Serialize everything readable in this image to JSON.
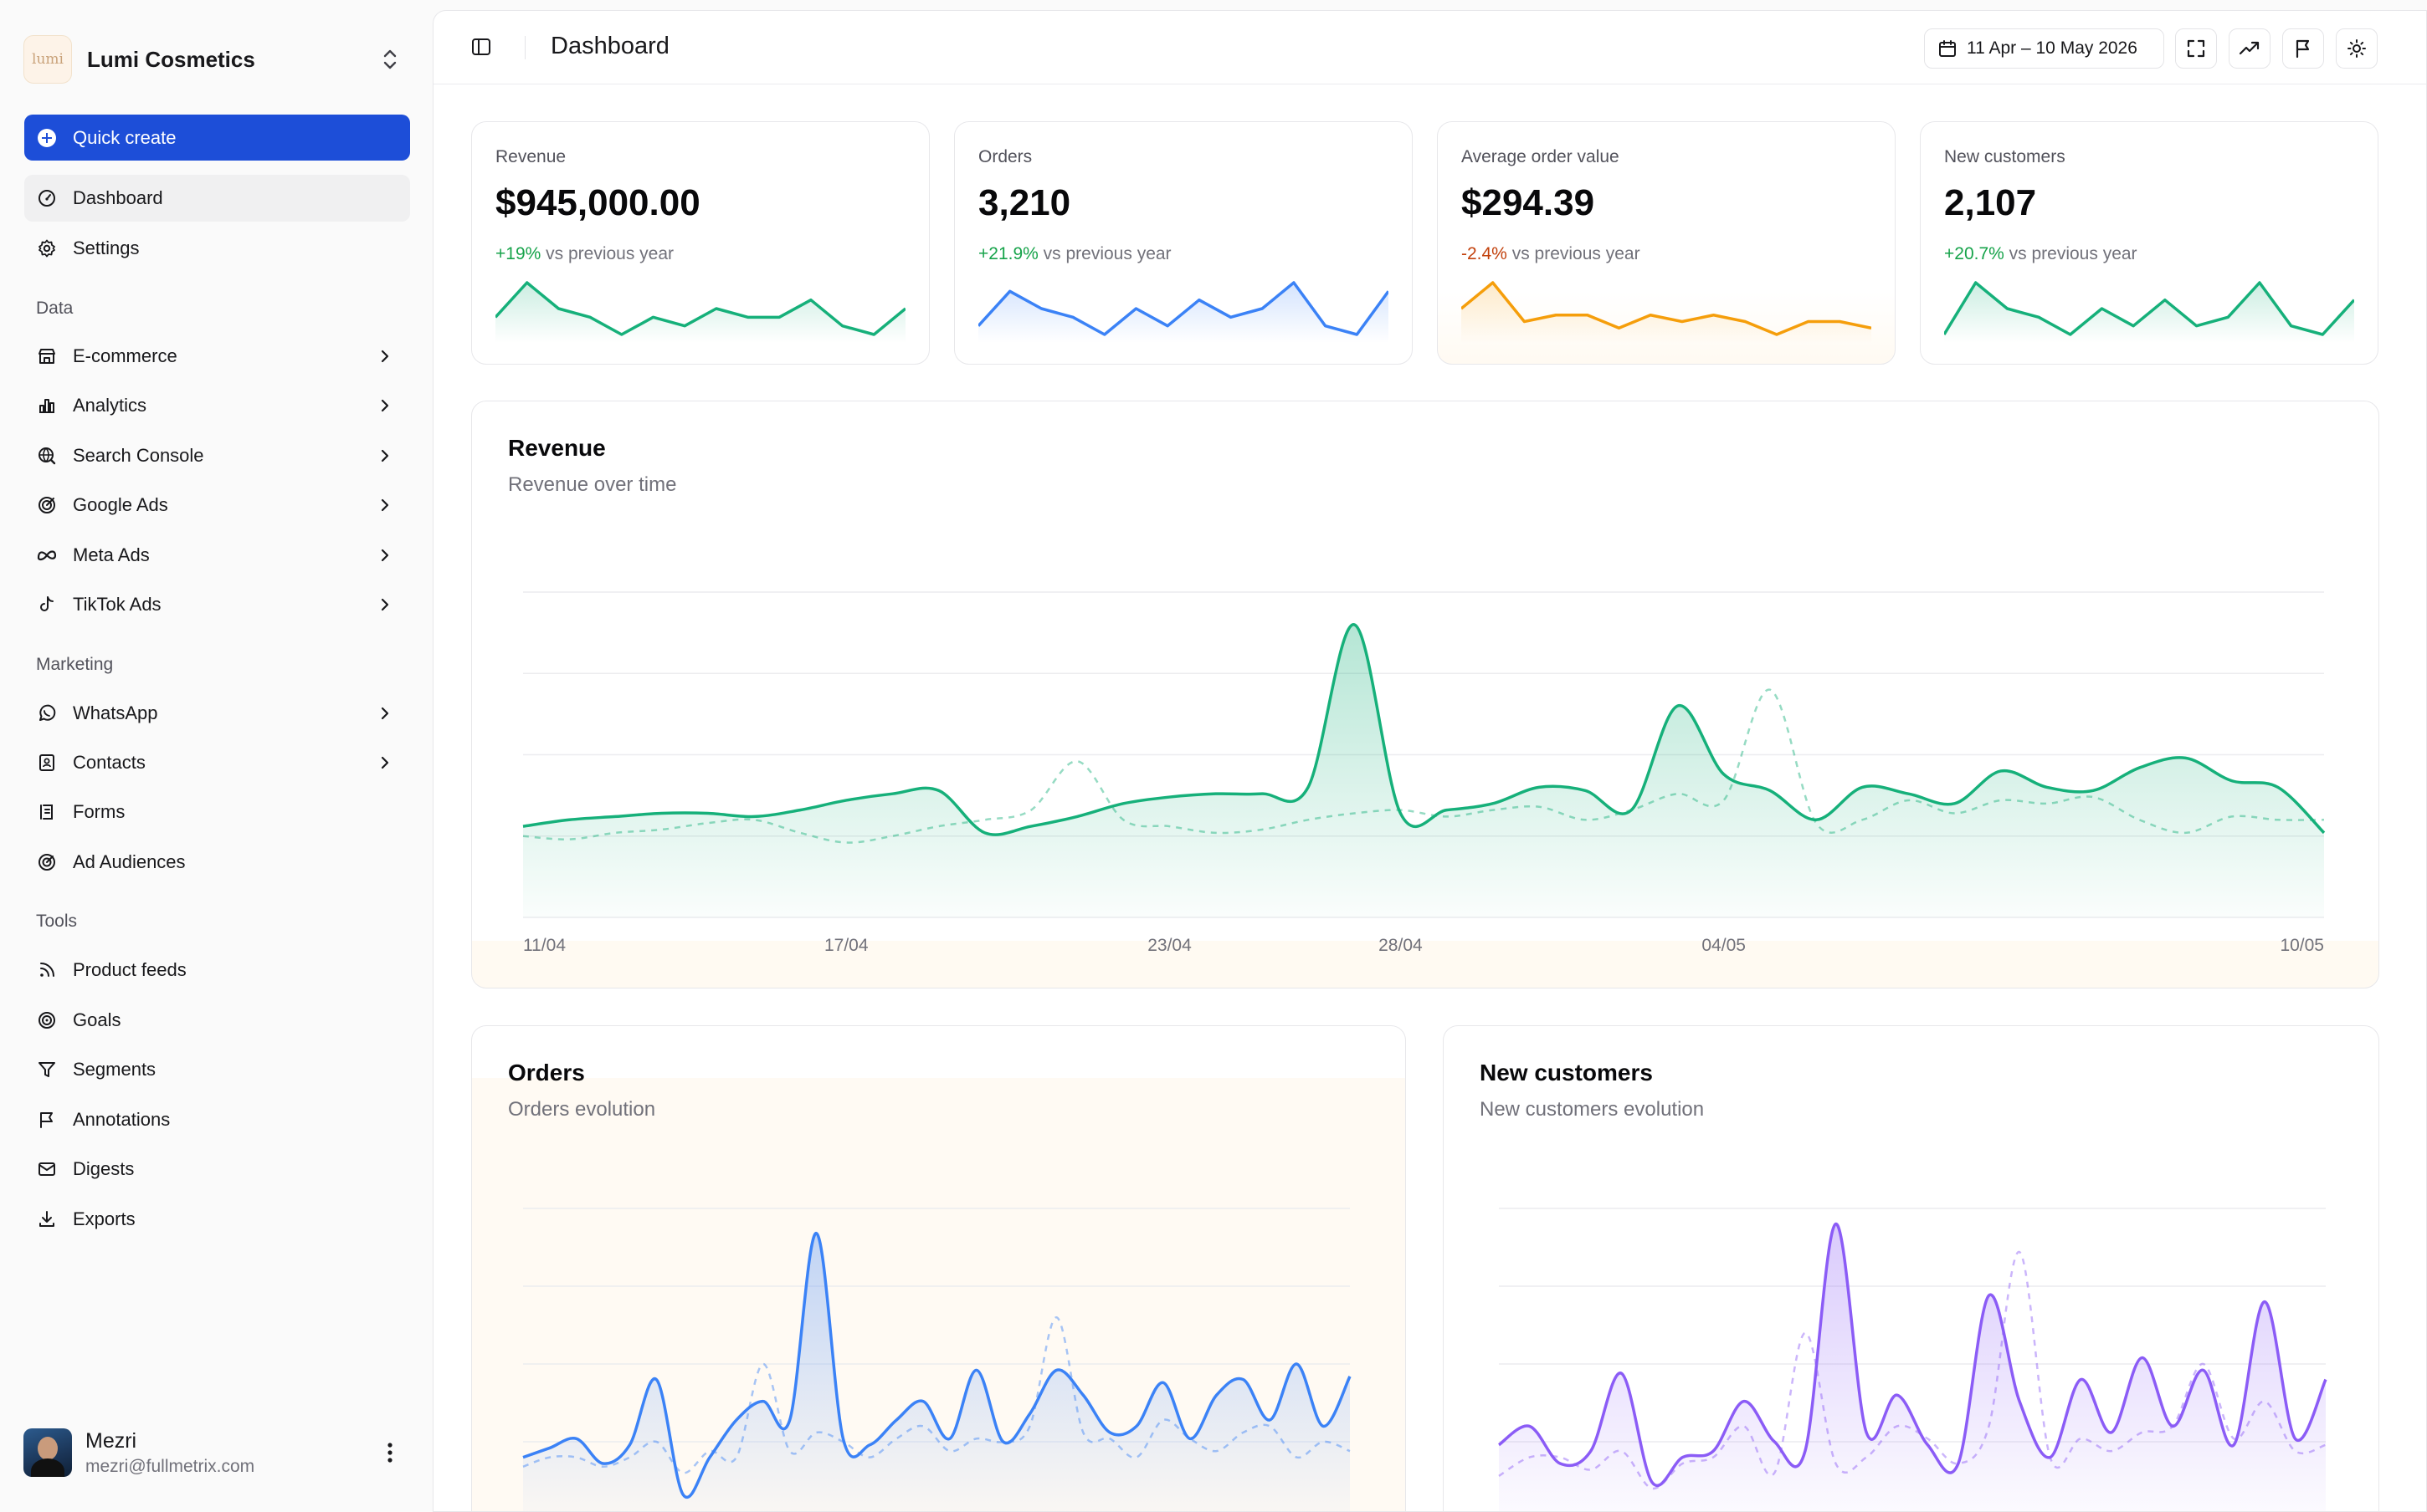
{
  "brand": {
    "name": "Lumi Cosmetics",
    "logo_text": "lumi"
  },
  "quick_create": "Quick create",
  "nav_top": [
    {
      "label": "Dashboard",
      "icon": "dashboard-icon",
      "active": true
    },
    {
      "label": "Settings",
      "icon": "gear-icon"
    }
  ],
  "sections": {
    "data": "Data",
    "marketing": "Marketing",
    "tools": "Tools"
  },
  "nav_data": [
    {
      "label": "E-commerce",
      "icon": "store-icon"
    },
    {
      "label": "Analytics",
      "icon": "bar-chart-icon"
    },
    {
      "label": "Search Console",
      "icon": "globe-search-icon"
    },
    {
      "label": "Google Ads",
      "icon": "target-icon"
    },
    {
      "label": "Meta Ads",
      "icon": "meta-icon"
    },
    {
      "label": "TikTok Ads",
      "icon": "tiktok-icon"
    }
  ],
  "nav_marketing": [
    {
      "label": "WhatsApp",
      "icon": "whatsapp-icon"
    },
    {
      "label": "Contacts",
      "icon": "contacts-icon"
    },
    {
      "label": "Forms",
      "icon": "form-icon"
    },
    {
      "label": "Ad Audiences",
      "icon": "audience-target-icon"
    }
  ],
  "nav_tools": [
    {
      "label": "Product feeds",
      "icon": "rss-icon"
    },
    {
      "label": "Goals",
      "icon": "goal-icon"
    },
    {
      "label": "Segments",
      "icon": "filter-icon"
    },
    {
      "label": "Annotations",
      "icon": "flag-icon"
    },
    {
      "label": "Digests",
      "icon": "mail-icon"
    },
    {
      "label": "Exports",
      "icon": "download-icon"
    }
  ],
  "user": {
    "name": "Mezri",
    "email": "mezri@fullmetrix.com"
  },
  "header": {
    "title": "Dashboard",
    "date_range": "11 Apr – 10 May 2026"
  },
  "kpis": [
    {
      "label": "Revenue",
      "value": "$945,000.00",
      "delta": "+19%",
      "delta_suffix": "vs previous year",
      "color": "#16b07a",
      "trend": [
        5,
        9,
        6,
        5,
        3,
        5,
        4,
        6,
        5,
        5,
        7,
        4,
        3,
        6
      ]
    },
    {
      "label": "Orders",
      "value": "3,210",
      "delta": "+21.9%",
      "delta_suffix": "vs previous year",
      "color": "#3b82f6",
      "trend": [
        4,
        8,
        6,
        5,
        3,
        6,
        4,
        7,
        5,
        6,
        9,
        4,
        3,
        8
      ]
    },
    {
      "label": "Average order value",
      "value": "$294.39",
      "delta": "-2.4%",
      "delta_suffix": "vs previous year",
      "color": "#f59e0b",
      "trend": [
        6,
        10,
        4,
        5,
        5,
        3,
        5,
        4,
        5,
        4,
        2,
        4,
        4,
        3
      ]
    },
    {
      "label": "New customers",
      "value": "2,107",
      "delta": "+20.7%",
      "delta_suffix": "vs previous year",
      "color": "#16b07a",
      "trend": [
        3,
        9,
        6,
        5,
        3,
        6,
        4,
        7,
        4,
        5,
        9,
        4,
        3,
        7
      ]
    }
  ],
  "charts": {
    "revenue": {
      "title": "Revenue",
      "subtitle": "Revenue over time",
      "color": "#16b07a"
    },
    "orders": {
      "title": "Orders",
      "subtitle": "Orders evolution",
      "color": "#3b82f6"
    },
    "new_customers": {
      "title": "New customers",
      "subtitle": "New customers evolution",
      "color": "#8b5cf6"
    }
  },
  "chart_data": [
    {
      "type": "area",
      "title": "Revenue",
      "subtitle": "Revenue over time",
      "x_ticks": [
        "11/04",
        "17/04",
        "23/04",
        "28/04",
        "04/05",
        "10/05"
      ],
      "ylim": [
        0,
        100
      ],
      "grid": true,
      "series": [
        {
          "values": [
            28,
            30,
            31,
            32,
            32,
            31,
            33,
            36,
            38,
            39,
            26,
            28,
            31,
            35,
            37,
            38,
            38,
            40,
            90,
            32,
            33,
            35,
            40,
            39,
            33,
            65,
            44,
            39,
            30,
            40,
            38,
            35,
            45,
            40,
            39,
            46,
            49,
            42,
            40,
            26
          ]
        },
        {
          "values": [
            25,
            24,
            26,
            27,
            29,
            30,
            26,
            23,
            25,
            28,
            30,
            33,
            48,
            30,
            28,
            26,
            27,
            30,
            32,
            33,
            31,
            33,
            34,
            30,
            33,
            38,
            36,
            70,
            29,
            30,
            36,
            32,
            36,
            35,
            37,
            30,
            26,
            31,
            30,
            30
          ]
        }
      ]
    },
    {
      "type": "area",
      "title": "Orders",
      "subtitle": "Orders evolution",
      "ylim": [
        0,
        100
      ],
      "grid": true,
      "series": [
        {
          "values": [
            20,
            23,
            26,
            18,
            24,
            45,
            8,
            20,
            32,
            38,
            32,
            92,
            26,
            24,
            32,
            38,
            26,
            48,
            25,
            34,
            48,
            40,
            28,
            30,
            44,
            26,
            40,
            45,
            32,
            50,
            30,
            46
          ]
        },
        {
          "values": [
            17,
            20,
            20,
            17,
            20,
            25,
            15,
            22,
            20,
            50,
            22,
            28,
            25,
            20,
            26,
            30,
            22,
            26,
            25,
            30,
            65,
            28,
            26,
            20,
            32,
            26,
            22,
            28,
            30,
            20,
            25,
            22
          ]
        }
      ]
    },
    {
      "type": "area",
      "title": "New customers",
      "subtitle": "New customers evolution",
      "ylim": [
        0,
        100
      ],
      "grid": true,
      "series": [
        {
          "values": [
            24,
            30,
            18,
            22,
            47,
            12,
            20,
            22,
            38,
            25,
            22,
            95,
            28,
            40,
            24,
            18,
            72,
            38,
            20,
            45,
            28,
            52,
            30,
            48,
            24,
            70,
            26,
            45
          ]
        },
        {
          "values": [
            14,
            20,
            20,
            16,
            22,
            10,
            18,
            20,
            30,
            15,
            60,
            18,
            20,
            30,
            26,
            18,
            30,
            86,
            20,
            26,
            22,
            28,
            30,
            50,
            26,
            38,
            22,
            24
          ]
        }
      ]
    }
  ]
}
